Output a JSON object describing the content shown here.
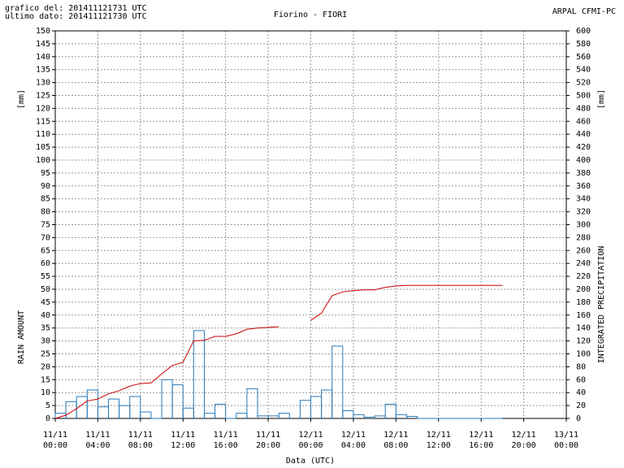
{
  "header": {
    "created": "grafico del: 201411121731 UTC",
    "last": "ultimo dato: 201411121730 UTC",
    "source": "ARPAL CFMI-PC"
  },
  "chart_data": {
    "type": "bar-line",
    "title": "Fiorino - FIORI",
    "xlabel": "Data (UTC)",
    "ylabel": "RAIN AMOUNT",
    "yunit": "[mm]",
    "y2label": "INTEGRATED PRECIPITATION",
    "y2unit": "[mm]",
    "xlim": [
      0,
      48
    ],
    "xticks": [
      {
        "value": 0,
        "label": [
          "11/11",
          "00:00"
        ]
      },
      {
        "value": 4,
        "label": [
          "11/11",
          "04:00"
        ]
      },
      {
        "value": 8,
        "label": [
          "11/11",
          "08:00"
        ]
      },
      {
        "value": 12,
        "label": [
          "11/11",
          "12:00"
        ]
      },
      {
        "value": 16,
        "label": [
          "11/11",
          "16:00"
        ]
      },
      {
        "value": 20,
        "label": [
          "11/11",
          "20:00"
        ]
      },
      {
        "value": 24,
        "label": [
          "12/11",
          "00:00"
        ]
      },
      {
        "value": 28,
        "label": [
          "12/11",
          "04:00"
        ]
      },
      {
        "value": 32,
        "label": [
          "12/11",
          "08:00"
        ]
      },
      {
        "value": 36,
        "label": [
          "12/11",
          "12:00"
        ]
      },
      {
        "value": 40,
        "label": [
          "12/11",
          "16:00"
        ]
      },
      {
        "value": 44,
        "label": [
          "12/11",
          "20:00"
        ]
      },
      {
        "value": 48,
        "label": [
          "13/11",
          "00:00"
        ]
      }
    ],
    "ylim": [
      0,
      150
    ],
    "yticks": [
      0,
      5,
      10,
      15,
      20,
      25,
      30,
      35,
      40,
      45,
      50,
      55,
      60,
      65,
      70,
      75,
      80,
      85,
      90,
      95,
      100,
      105,
      110,
      115,
      120,
      125,
      130,
      135,
      140,
      145,
      150
    ],
    "y2lim": [
      0,
      600
    ],
    "y2ticks": [
      0,
      20,
      40,
      60,
      80,
      100,
      120,
      140,
      160,
      180,
      200,
      220,
      240,
      260,
      280,
      300,
      320,
      340,
      360,
      380,
      400,
      420,
      440,
      460,
      480,
      500,
      520,
      540,
      560,
      580,
      600
    ],
    "grid": true,
    "series": [
      {
        "kind": "bar",
        "color": "#2a7ab8",
        "x": [
          0,
          1,
          2,
          3,
          4,
          5,
          6,
          7,
          8,
          9,
          10,
          11,
          12,
          13,
          14,
          15,
          16,
          17,
          18,
          19,
          20,
          21,
          22,
          23,
          24,
          25,
          26,
          27,
          28,
          29,
          30,
          31,
          32,
          33,
          34,
          35,
          36,
          37,
          38,
          39,
          40,
          41
        ],
        "values": [
          2,
          6.5,
          8.5,
          11,
          4.5,
          7.5,
          5,
          8.5,
          2.5,
          0,
          15,
          13,
          4,
          34,
          2,
          5.5,
          0,
          2,
          11.5,
          1,
          1,
          2,
          null,
          7,
          8.5,
          11,
          28,
          3,
          1.5,
          0.5,
          1,
          5.5,
          1.5,
          0.8,
          0,
          0,
          0,
          0,
          0,
          0,
          0,
          0
        ]
      },
      {
        "kind": "line",
        "axis": "y2",
        "color": "#cc0000",
        "x": [
          0,
          1,
          2,
          3,
          4,
          5,
          6,
          7,
          8,
          9,
          10,
          11,
          12,
          13,
          14,
          15,
          16,
          17,
          18,
          19,
          20,
          21,
          22,
          23,
          24,
          25,
          26,
          27,
          28,
          29,
          30,
          31,
          32,
          33,
          34,
          35,
          36,
          37,
          38,
          39,
          40,
          41,
          42
        ],
        "values": [
          0,
          5,
          15,
          27,
          30,
          38,
          43,
          50,
          54,
          55,
          69,
          82,
          87,
          120,
          121,
          127,
          127,
          131,
          138,
          140,
          141,
          142,
          null,
          null,
          152,
          163,
          190,
          196,
          198,
          199,
          199,
          203,
          205,
          206,
          206,
          206,
          206,
          206,
          206,
          206,
          206,
          206,
          206
        ]
      }
    ]
  }
}
